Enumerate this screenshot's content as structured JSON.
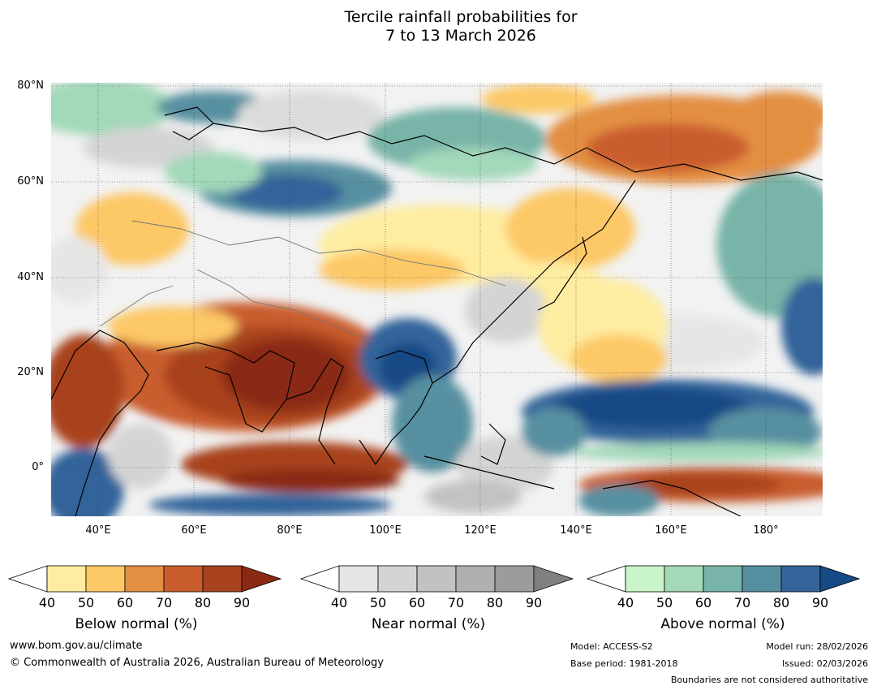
{
  "title_line1": "Tercile rainfall probabilities for",
  "title_line2": "7 to 13 March 2026",
  "map": {
    "lat_labels": [
      "80°N",
      "60°N",
      "40°N",
      "20°N",
      "0°"
    ],
    "lon_labels": [
      "40°E",
      "60°E",
      "80°E",
      "100°E",
      "120°E",
      "140°E",
      "160°E",
      "180°"
    ]
  },
  "colorbars": [
    {
      "title": "Below normal (%)",
      "ticks": [
        "40",
        "50",
        "60",
        "70",
        "80",
        "90"
      ],
      "colors": [
        "#ffffff",
        "#feeda1",
        "#fdc866",
        "#e38f42",
        "#c95d2e",
        "#a9421f",
        "#8a2a14"
      ]
    },
    {
      "title": "Near normal (%)",
      "ticks": [
        "40",
        "50",
        "60",
        "70",
        "80",
        "90"
      ],
      "colors": [
        "#ffffff",
        "#e6e6e6",
        "#d4d4d4",
        "#c2c2c2",
        "#b0b0b0",
        "#9c9c9c",
        "#808080"
      ]
    },
    {
      "title": "Above normal (%)",
      "ticks": [
        "40",
        "50",
        "60",
        "70",
        "80",
        "90"
      ],
      "colors": [
        "#ffffff",
        "#c9f5c9",
        "#a3d8b9",
        "#78b4a8",
        "#5690a0",
        "#33649a",
        "#154a85"
      ]
    }
  ],
  "footer": {
    "url": "www.bom.gov.au/climate",
    "copyright": "© Commonwealth of Australia 2026, Australian Bureau of Meteorology",
    "model": "Model: ACCESS-S2",
    "base_period": "Base period: 1981-2018",
    "model_run": "Model run: 28/02/2026",
    "issued": "Issued: 02/03/2026",
    "disclaimer": "Boundaries are not considered authoritative"
  }
}
